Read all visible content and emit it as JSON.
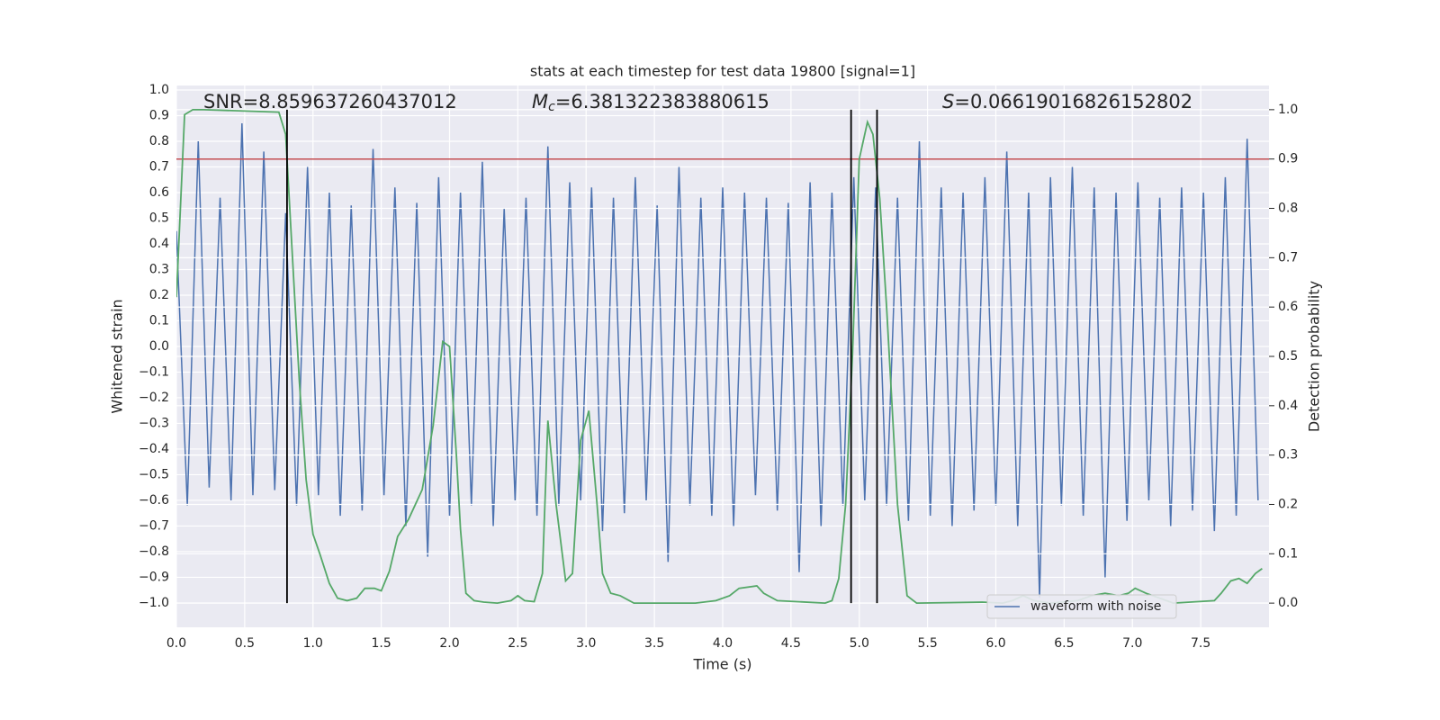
{
  "chart_data": {
    "type": "line",
    "title": "stats at each timestep for test data 19800 [signal=1]",
    "xlabel": "Time (s)",
    "ylabel": "Whitened strain",
    "y2label": "Detection probability",
    "xlim": [
      0,
      8.0
    ],
    "ylim": [
      -1.095,
      1.0175
    ],
    "y2lim": [
      -0.049,
      1.049
    ],
    "xticks": [
      {
        "value": 0,
        "label": "0.0"
      },
      {
        "value": 0.5,
        "label": "0.5"
      },
      {
        "value": 1,
        "label": "1.0"
      },
      {
        "value": 1.5,
        "label": "1.5"
      },
      {
        "value": 2,
        "label": "2.0"
      },
      {
        "value": 2.5,
        "label": "2.5"
      },
      {
        "value": 3,
        "label": "3.0"
      },
      {
        "value": 3.5,
        "label": "3.5"
      },
      {
        "value": 4,
        "label": "4.0"
      },
      {
        "value": 4.5,
        "label": "4.5"
      },
      {
        "value": 5,
        "label": "5.0"
      },
      {
        "value": 5.5,
        "label": "5.5"
      },
      {
        "value": 6,
        "label": "6.0"
      },
      {
        "value": 6.5,
        "label": "6.5"
      },
      {
        "value": 7,
        "label": "7.0"
      },
      {
        "value": 7.5,
        "label": "7.5"
      }
    ],
    "yticks": [
      {
        "value": -1.0,
        "label": "−1.0"
      },
      {
        "value": -0.9,
        "label": "−0.9"
      },
      {
        "value": -0.8,
        "label": "−0.8"
      },
      {
        "value": -0.7,
        "label": "−0.7"
      },
      {
        "value": -0.6,
        "label": "−0.6"
      },
      {
        "value": -0.5,
        "label": "−0.5"
      },
      {
        "value": -0.4,
        "label": "−0.4"
      },
      {
        "value": -0.3,
        "label": "−0.3"
      },
      {
        "value": -0.2,
        "label": "−0.2"
      },
      {
        "value": -0.1,
        "label": "−0.1"
      },
      {
        "value": 0,
        "label": "0.0"
      },
      {
        "value": 0.1,
        "label": "0.1"
      },
      {
        "value": 0.2,
        "label": "0.2"
      },
      {
        "value": 0.3,
        "label": "0.3"
      },
      {
        "value": 0.4,
        "label": "0.4"
      },
      {
        "value": 0.5,
        "label": "0.5"
      },
      {
        "value": 0.6,
        "label": "0.6"
      },
      {
        "value": 0.7,
        "label": "0.7"
      },
      {
        "value": 0.8,
        "label": "0.8"
      },
      {
        "value": 0.9,
        "label": "0.9"
      },
      {
        "value": 1.0,
        "label": "1.0"
      }
    ],
    "y2ticks": [
      {
        "value": 0,
        "label": "0.0"
      },
      {
        "value": 0.1,
        "label": "0.1"
      },
      {
        "value": 0.2,
        "label": "0.2"
      },
      {
        "value": 0.3,
        "label": "0.3"
      },
      {
        "value": 0.4,
        "label": "0.4"
      },
      {
        "value": 0.5,
        "label": "0.5"
      },
      {
        "value": 0.6,
        "label": "0.6"
      },
      {
        "value": 0.7,
        "label": "0.7"
      },
      {
        "value": 0.8,
        "label": "0.8"
      },
      {
        "value": 0.9,
        "label": "0.9"
      },
      {
        "value": 1.0,
        "label": "1.0"
      }
    ],
    "grid": true,
    "legend": "lower right",
    "series": [
      {
        "name": "waveform with noise",
        "color": "#4c72b0",
        "x": [
          0,
          0.08,
          0.16,
          0.24,
          0.32,
          0.4,
          0.48,
          0.56,
          0.64,
          0.72,
          0.8,
          0.88,
          0.96,
          1.04,
          1.12,
          1.2,
          1.28,
          1.36,
          1.44,
          1.52,
          1.6,
          1.68,
          1.76,
          1.84,
          1.92,
          2.0,
          2.08,
          2.16,
          2.24,
          2.32,
          2.4,
          2.48,
          2.56,
          2.64,
          2.72,
          2.8,
          2.88,
          2.96,
          3.04,
          3.12,
          3.2,
          3.28,
          3.36,
          3.44,
          3.52,
          3.6,
          3.68,
          3.76,
          3.84,
          3.92,
          4.0,
          4.08,
          4.16,
          4.24,
          4.32,
          4.4,
          4.48,
          4.56,
          4.64,
          4.72,
          4.8,
          4.88,
          4.96,
          5.04,
          5.12,
          5.2,
          5.28,
          5.36,
          5.44,
          5.52,
          5.6,
          5.68,
          5.76,
          5.84,
          5.92,
          6.0,
          6.08,
          6.16,
          6.24,
          6.32,
          6.4,
          6.48,
          6.56,
          6.64,
          6.72,
          6.8,
          6.88,
          6.96,
          7.04,
          7.12,
          7.2,
          7.28,
          7.36,
          7.44,
          7.52,
          7.6,
          7.68,
          7.76,
          7.84,
          7.92
        ],
        "values": [
          0.45,
          -0.62,
          0.8,
          -0.55,
          0.58,
          -0.6,
          0.87,
          -0.58,
          0.76,
          -0.56,
          0.52,
          -0.62,
          0.7,
          -0.58,
          0.6,
          -0.66,
          0.55,
          -0.64,
          0.77,
          -0.58,
          0.62,
          -0.7,
          0.56,
          -0.82,
          0.66,
          -0.66,
          0.6,
          -0.62,
          0.72,
          -0.7,
          0.54,
          -0.6,
          0.58,
          -0.66,
          0.78,
          -0.62,
          0.64,
          -0.6,
          0.62,
          -0.72,
          0.58,
          -0.65,
          0.66,
          -0.6,
          0.55,
          -0.84,
          0.7,
          -0.62,
          0.58,
          -0.66,
          0.62,
          -0.7,
          0.6,
          -0.58,
          0.58,
          -0.64,
          0.56,
          -0.88,
          0.64,
          -0.7,
          0.6,
          -0.62,
          0.66,
          -0.6,
          0.62,
          -0.62,
          0.58,
          -0.68,
          0.8,
          -0.66,
          0.62,
          -0.7,
          0.6,
          -0.64,
          0.66,
          -0.62,
          0.76,
          -0.7,
          0.6,
          -0.98,
          0.66,
          -0.62,
          0.7,
          -0.66,
          0.62,
          -0.9,
          0.6,
          -0.68,
          0.64,
          -0.6,
          0.58,
          -0.7,
          0.62,
          -0.64,
          0.6,
          -0.72,
          0.66,
          -0.66,
          0.81,
          -0.6
        ]
      },
      {
        "color": "#55a868",
        "axis": "y2",
        "x": [
          0,
          0.06,
          0.12,
          0.2,
          0.75,
          0.8,
          0.85,
          0.9,
          0.95,
          1.0,
          1.05,
          1.12,
          1.18,
          1.25,
          1.32,
          1.38,
          1.45,
          1.5,
          1.56,
          1.62,
          1.7,
          1.8,
          1.88,
          1.95,
          2.0,
          2.05,
          2.08,
          2.12,
          2.18,
          2.25,
          2.35,
          2.45,
          2.5,
          2.55,
          2.62,
          2.68,
          2.72,
          2.78,
          2.85,
          2.9,
          2.96,
          3.02,
          3.08,
          3.12,
          3.18,
          3.25,
          3.35,
          3.8,
          3.95,
          4.05,
          4.12,
          4.25,
          4.3,
          4.4,
          4.75,
          4.8,
          4.85,
          4.9,
          4.95,
          5.0,
          5.06,
          5.1,
          5.15,
          5.2,
          5.28,
          5.35,
          5.42,
          5.9,
          6.05,
          6.12,
          6.2,
          6.28,
          6.4,
          6.6,
          6.7,
          6.8,
          6.9,
          6.97,
          7.02,
          7.1,
          7.25,
          7.3,
          7.6,
          7.65,
          7.72,
          7.78,
          7.84,
          7.9,
          7.95
        ],
        "values": [
          0.62,
          0.99,
          1.0,
          1.0,
          0.995,
          0.95,
          0.7,
          0.45,
          0.25,
          0.14,
          0.1,
          0.04,
          0.01,
          0.005,
          0.01,
          0.03,
          0.03,
          0.025,
          0.065,
          0.135,
          0.17,
          0.23,
          0.36,
          0.53,
          0.52,
          0.3,
          0.15,
          0.02,
          0.005,
          0.002,
          0.0,
          0.005,
          0.015,
          0.005,
          0.003,
          0.06,
          0.37,
          0.2,
          0.045,
          0.06,
          0.33,
          0.39,
          0.2,
          0.06,
          0.02,
          0.015,
          0.0,
          0.0,
          0.005,
          0.015,
          0.03,
          0.035,
          0.02,
          0.005,
          0.0,
          0.005,
          0.05,
          0.2,
          0.5,
          0.9,
          0.975,
          0.95,
          0.82,
          0.6,
          0.2,
          0.015,
          0.0,
          0.002,
          0.0,
          0.005,
          0.015,
          0.005,
          0.0,
          0.005,
          0.015,
          0.02,
          0.015,
          0.02,
          0.03,
          0.02,
          0.005,
          0.0,
          0.005,
          0.02,
          0.045,
          0.05,
          0.04,
          0.06,
          0.07
        ]
      }
    ],
    "threshold": {
      "value": 0.9,
      "axis": "y2",
      "color": "#c44e52"
    },
    "vlines": {
      "x": [
        0.81,
        4.94,
        5.13
      ],
      "y2range": [
        0,
        1
      ],
      "color": "#000000"
    },
    "annotations": {
      "snr": "SNR=8.859637260437012",
      "mc_symbol": "M",
      "mc_subscript": "c",
      "mc_rest": "=6.381322383880615",
      "s_symbol": "S",
      "s_rest": "=0.06619016826152802"
    }
  }
}
